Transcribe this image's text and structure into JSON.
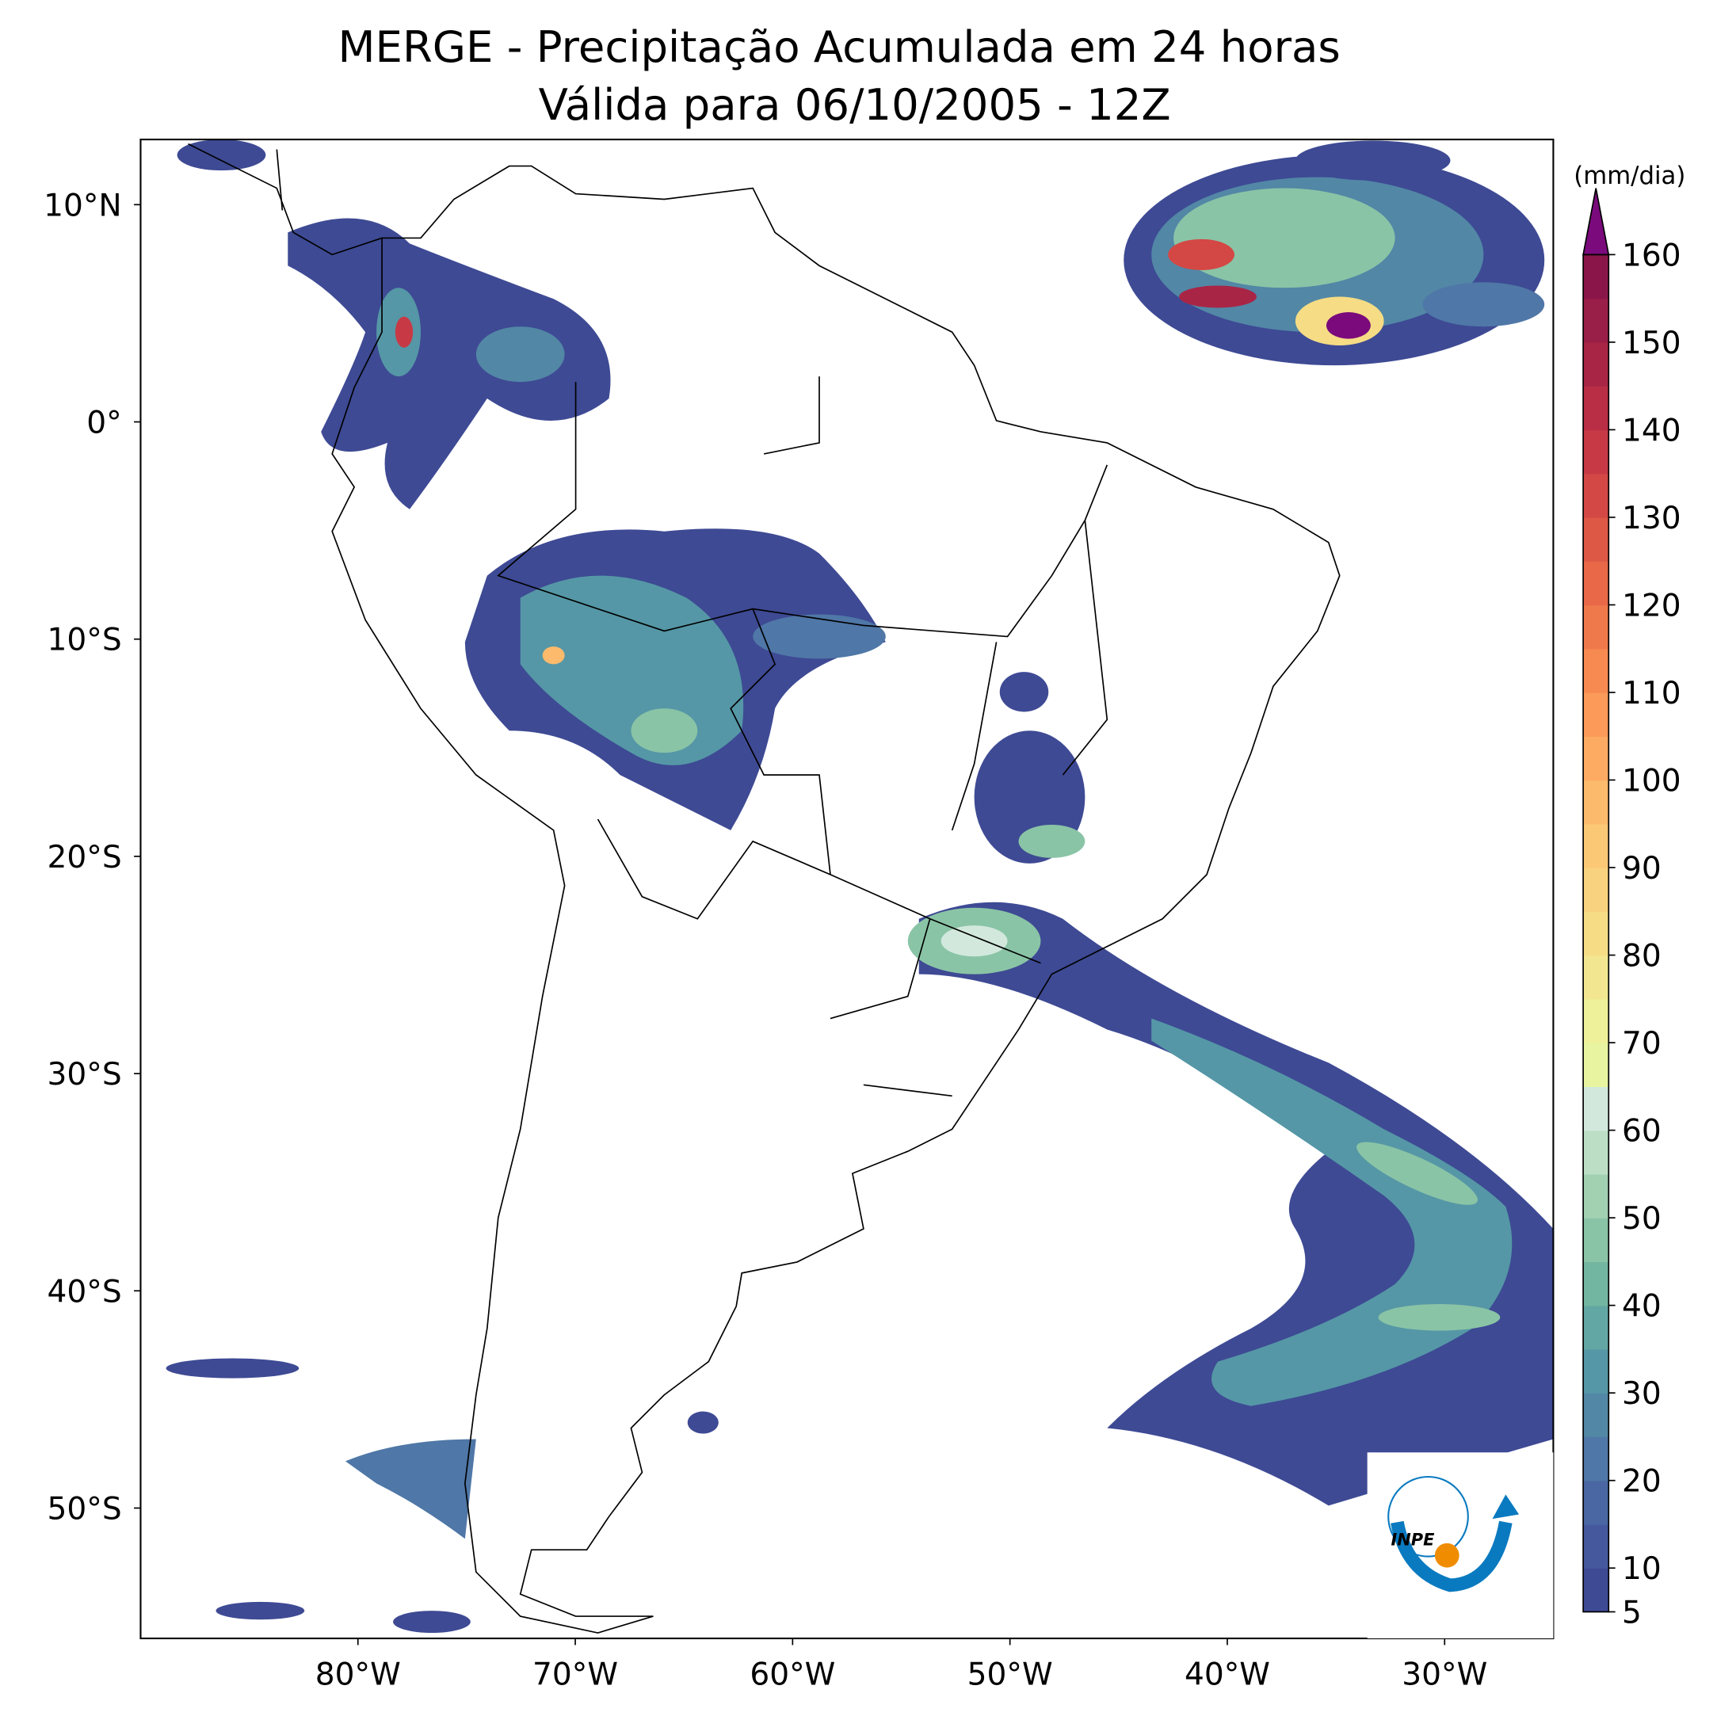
{
  "title": "MERGE - Precipitação Acumulada em 24 horas",
  "subtitle": "Válida para 06/10/2005 - 12Z",
  "map": {
    "xlim": [
      -90,
      -25
    ],
    "ylim": [
      -56,
      13
    ],
    "lon_ticks": [
      {
        "value": -80,
        "label": "80°W"
      },
      {
        "value": -70,
        "label": "70°W"
      },
      {
        "value": -60,
        "label": "60°W"
      },
      {
        "value": -50,
        "label": "50°W"
      },
      {
        "value": -40,
        "label": "40°W"
      },
      {
        "value": -30,
        "label": "30°W"
      }
    ],
    "lat_ticks": [
      {
        "value": 10,
        "label": "10°N"
      },
      {
        "value": 0,
        "label": "0°"
      },
      {
        "value": -10,
        "label": "10°S"
      },
      {
        "value": -20,
        "label": "20°S"
      },
      {
        "value": -30,
        "label": "30°S"
      },
      {
        "value": -40,
        "label": "40°S"
      },
      {
        "value": -50,
        "label": "50°S"
      }
    ]
  },
  "colorbar": {
    "unit": "(mm/dia)",
    "lim": [
      5,
      160
    ],
    "ticks": [
      5,
      10,
      20,
      30,
      40,
      50,
      60,
      70,
      80,
      90,
      100,
      110,
      120,
      130,
      140,
      150,
      160
    ],
    "colors": [
      "#3e4a94",
      "#45589e",
      "#4a67a4",
      "#4f77a7",
      "#5287a6",
      "#5597a6",
      "#62a7a3",
      "#72b6a1",
      "#8ac4a6",
      "#a2d1b2",
      "#bcdec5",
      "#d2e8dd",
      "#e8f4a0",
      "#eef09a",
      "#f2e690",
      "#f5dc85",
      "#f8d27e",
      "#fbc876",
      "#fcba6c",
      "#fdaa62",
      "#fb9a59",
      "#f78a51",
      "#f0794b",
      "#e86848",
      "#de5846",
      "#d34845",
      "#c73a45",
      "#b92e45",
      "#a92546",
      "#991e48",
      "#8a1649"
    ],
    "extend_color": "#7b0a7c"
  },
  "logo_text": "INPE"
}
